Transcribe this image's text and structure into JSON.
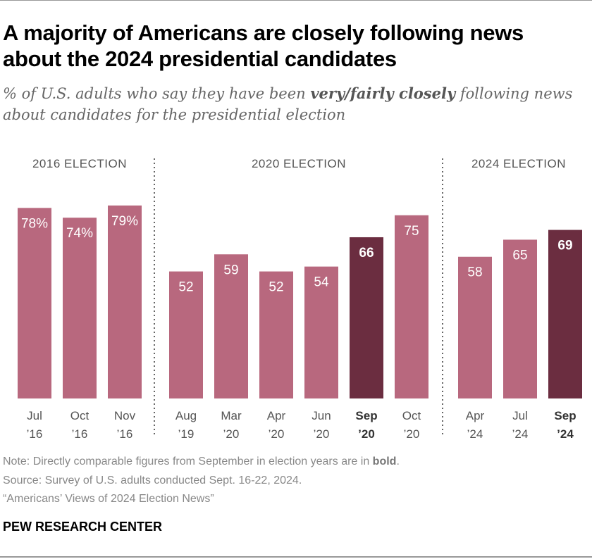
{
  "title": "A majority of Americans are closely following news about the 2024 presidential candidates",
  "subtitle": {
    "pre": "% of U.S. adults who say they have been ",
    "bold": "very/fairly closely",
    "post": " following news about candidates for the presidential election"
  },
  "chart_data": {
    "type": "bar",
    "groups": [
      {
        "label": "2016 ELECTION",
        "categories": [
          [
            "Jul",
            "’16"
          ],
          [
            "Oct",
            "’16"
          ],
          [
            "Nov",
            "’16"
          ]
        ],
        "values": [
          78,
          74,
          79
        ],
        "value_labels": [
          "78%",
          "74%",
          "79%"
        ],
        "bold": [
          false,
          false,
          false
        ]
      },
      {
        "label": "2020 ELECTION",
        "categories": [
          [
            "Aug",
            "’19"
          ],
          [
            "Mar",
            "’20"
          ],
          [
            "Apr",
            "’20"
          ],
          [
            "Jun",
            "’20"
          ],
          [
            "Sep",
            "’20"
          ],
          [
            "Oct",
            "’20"
          ]
        ],
        "values": [
          52,
          59,
          52,
          54,
          66,
          75
        ],
        "value_labels": [
          "52",
          "59",
          "52",
          "54",
          "66",
          "75"
        ],
        "bold": [
          false,
          false,
          false,
          false,
          true,
          false
        ]
      },
      {
        "label": "2024 ELECTION",
        "categories": [
          [
            "Apr",
            "’24"
          ],
          [
            "Jul",
            "’24"
          ],
          [
            "Sep",
            "’24"
          ]
        ],
        "values": [
          58,
          65,
          69
        ],
        "value_labels": [
          "58",
          "65",
          "69"
        ],
        "bold": [
          false,
          false,
          true
        ]
      }
    ],
    "ylim": [
      0,
      100
    ],
    "colors": {
      "regular": "#b8687e",
      "highlight": "#6b2d40",
      "text": "#555555"
    }
  },
  "footer": {
    "note_pre": "Note: Directly comparable figures from September in election years are in ",
    "note_bold": "bold",
    "note_post": ".",
    "source": "Source: Survey of U.S. adults conducted Sept. 16-22, 2024.",
    "report": "“Americans’ Views of 2024 Election News”",
    "brand": "PEW RESEARCH CENTER"
  }
}
